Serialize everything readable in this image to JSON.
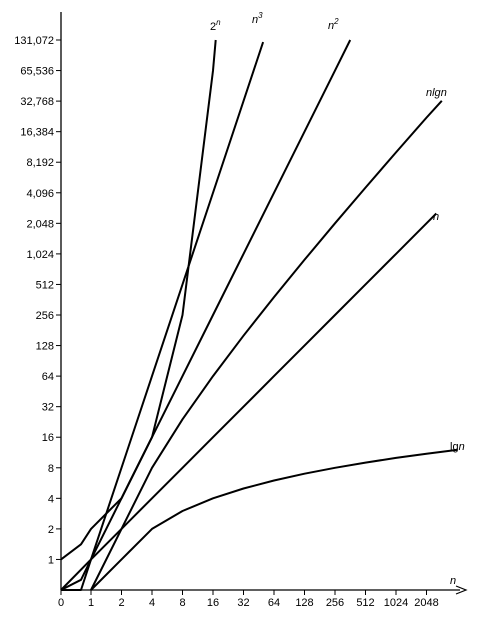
{
  "chart_data": {
    "type": "line",
    "title": "",
    "x_axis": {
      "label": "n",
      "scale": "log2 (0 at origin)",
      "ticks": [
        "0",
        "1",
        "2",
        "4",
        "8",
        "16",
        "32",
        "64",
        "128",
        "256",
        "512",
        "1024",
        "2048"
      ]
    },
    "y_axis": {
      "label": "",
      "scale": "log2",
      "ticks": [
        "1",
        "2",
        "4",
        "8",
        "16",
        "32",
        "64",
        "128",
        "256",
        "512",
        "1,024",
        "2,048",
        "4,096",
        "8,192",
        "16,384",
        "32,768",
        "65,536",
        "131,072"
      ]
    },
    "series": [
      {
        "name": "2^n",
        "label_base": "2",
        "label_sup": "n",
        "x": [
          0,
          0.5,
          1,
          2,
          4,
          8,
          16,
          17
        ],
        "y": [
          1,
          1.41,
          2,
          4,
          16,
          256,
          65536,
          131072
        ]
      },
      {
        "name": "n^3",
        "label_base": "n",
        "label_sup": "3",
        "x": [
          0.1,
          0.5,
          1,
          2,
          4,
          8,
          16,
          32,
          50
        ],
        "y": [
          0.001,
          0.125,
          1,
          8,
          64,
          512,
          4096,
          32768,
          125000
        ]
      },
      {
        "name": "n^2",
        "label_base": "n",
        "label_sup": "2",
        "x": [
          0.1,
          0.5,
          1,
          2,
          4,
          8,
          16,
          32,
          64,
          128,
          256,
          362
        ],
        "y": [
          0.01,
          0.25,
          1,
          4,
          16,
          64,
          256,
          1024,
          4096,
          16384,
          65536,
          131072
        ]
      },
      {
        "name": "nlgn",
        "label_base": "nlg",
        "label_sup": "",
        "label_tail": "n",
        "x": [
          1,
          2,
          4,
          8,
          16,
          32,
          64,
          128,
          256,
          512,
          1024,
          2048,
          2900
        ],
        "y": [
          0,
          2,
          8,
          24,
          64,
          160,
          384,
          896,
          2048,
          4608,
          10240,
          22528,
          33000
        ]
      },
      {
        "name": "n",
        "label_base": "n",
        "label_sup": "",
        "x": [
          0.1,
          1,
          2,
          4,
          8,
          16,
          32,
          64,
          128,
          256,
          512,
          1024,
          2048,
          2560
        ],
        "y": [
          0.1,
          1,
          2,
          4,
          8,
          16,
          32,
          64,
          128,
          256,
          512,
          1024,
          2048,
          2560
        ]
      },
      {
        "name": "lgn",
        "label_base": "lg",
        "label_sup": "",
        "label_tail": "n",
        "x": [
          1,
          2,
          4,
          8,
          16,
          32,
          64,
          128,
          256,
          512,
          1024,
          2048,
          4096
        ],
        "y": [
          0,
          1,
          2,
          3,
          4,
          5,
          6,
          7,
          8,
          9,
          10,
          11,
          12
        ]
      }
    ]
  }
}
